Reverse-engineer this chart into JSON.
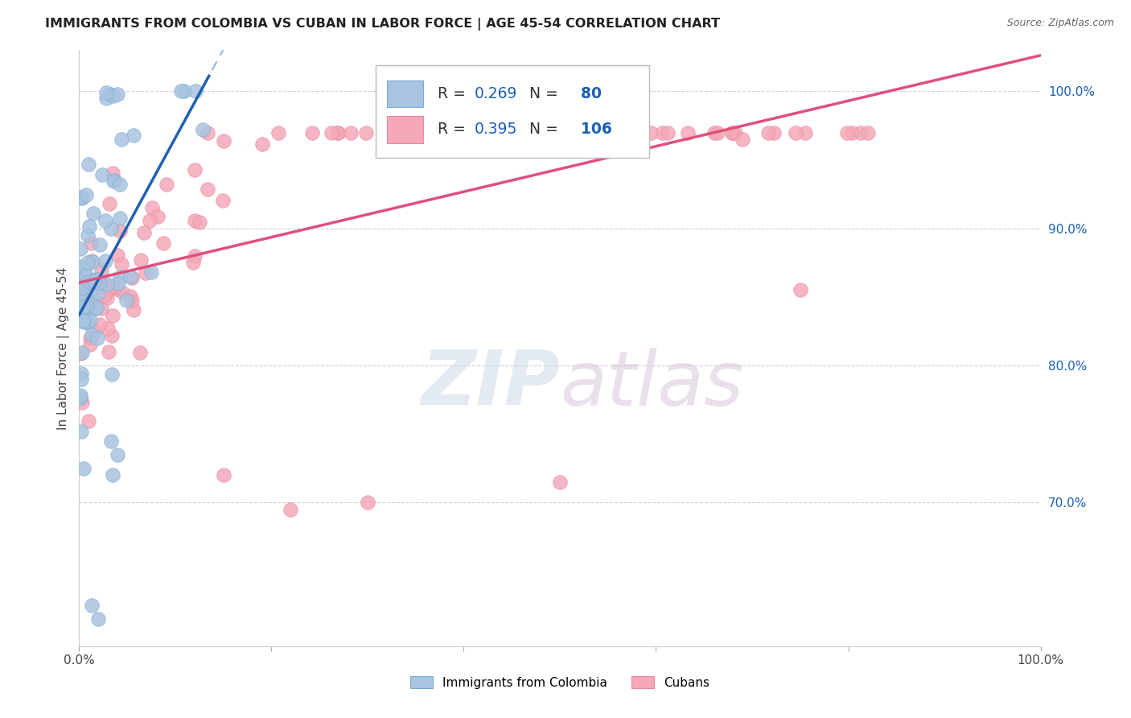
{
  "title": "IMMIGRANTS FROM COLOMBIA VS CUBAN IN LABOR FORCE | AGE 45-54 CORRELATION CHART",
  "source": "Source: ZipAtlas.com",
  "ylabel": "In Labor Force | Age 45-54",
  "xlim": [
    0.0,
    1.0
  ],
  "ylim": [
    0.595,
    1.03
  ],
  "right_yticks": [
    1.0,
    0.9,
    0.8,
    0.7
  ],
  "right_ytick_labels": [
    "100.0%",
    "90.0%",
    "80.0%",
    "70.0%"
  ],
  "colombia_color": "#a8c4e0",
  "colombia_edge": "#7aaace",
  "cuba_color": "#f4a8b8",
  "cuba_edge": "#e888a0",
  "colombia_R": 0.269,
  "colombia_N": 80,
  "cuba_R": 0.395,
  "cuba_N": 106,
  "legend_label1": "Immigrants from Colombia",
  "legend_label2": "Cubans",
  "line_blue": "#2060b0",
  "line_blue_dashed": "#90b8d8",
  "line_pink": "#e0507a",
  "text_dark": "#333333",
  "text_blue": "#1a5fb4",
  "grid_color": "#d0d0d0",
  "source_color": "#666666"
}
